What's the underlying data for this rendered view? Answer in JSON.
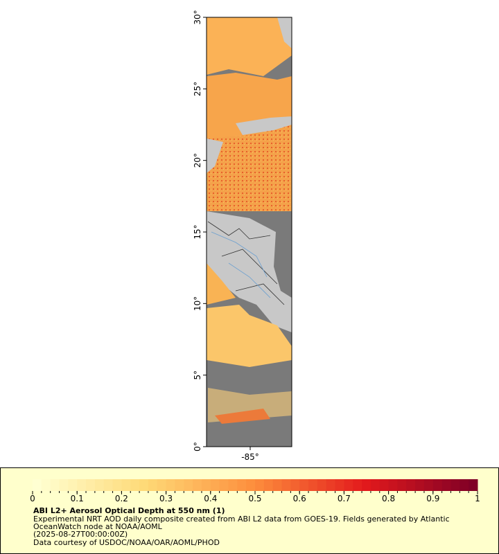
{
  "map": {
    "lat_labels": [
      {
        "value": 30,
        "label": "30°"
      },
      {
        "value": 25,
        "label": "25°"
      },
      {
        "value": 20,
        "label": "20°"
      },
      {
        "value": 15,
        "label": "15°"
      },
      {
        "value": 10,
        "label": "10°"
      },
      {
        "value": 5,
        "label": "5°"
      },
      {
        "value": 0,
        "label": "0°"
      }
    ],
    "lon_labels": [
      {
        "value": -85,
        "label": "-85°"
      }
    ]
  },
  "colorbar": {
    "range": [
      0,
      1
    ],
    "ticks": [
      0,
      0.1,
      0.2,
      0.3,
      0.4,
      0.5,
      0.6,
      0.7,
      0.8,
      0.9,
      1
    ]
  },
  "caption": {
    "title": "ABI L2+ Aerosol Optical Depth at 550 nm (1)",
    "lines": [
      "Experimental NRT AOD daily composite created from ABI L2 data from GOES-19. Fields generated by Atlantic",
      "OceanWatch node at NOAA/AOML",
      "(2025-08-27T00:00:00Z)",
      "Data courtesy of USDOC/NOAA/OAR/AOML/PHOD"
    ]
  }
}
